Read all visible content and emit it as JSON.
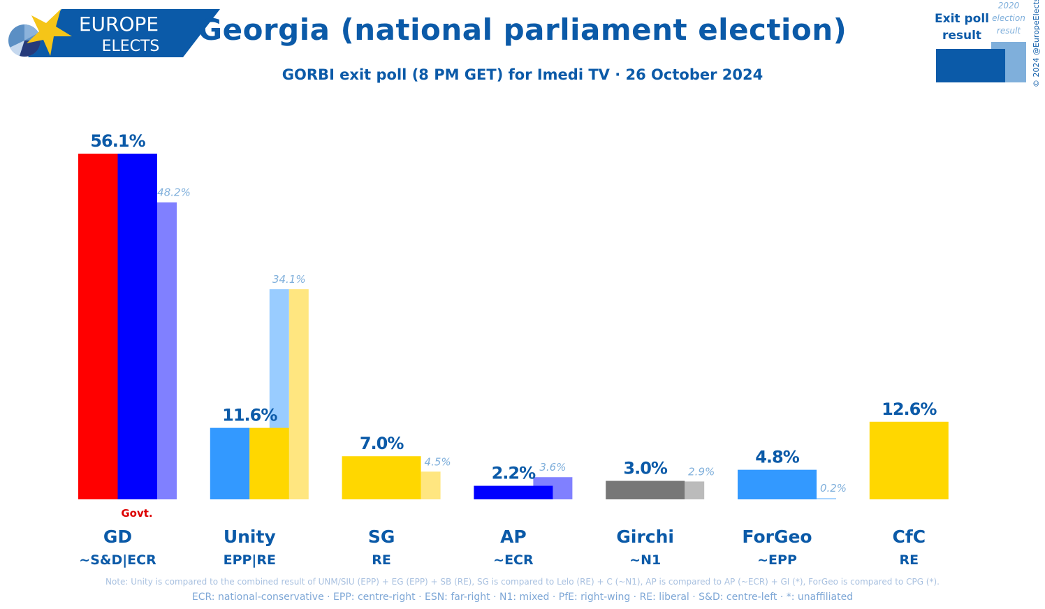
{
  "logo": {
    "line1": "EUROPE",
    "line2": "ELECTS"
  },
  "header": {
    "title": "Georgia (national parliament election)",
    "subtitle": "GORBI exit poll (8 PM GET) for Imedi TV · 26 October 2024"
  },
  "key": {
    "current": "Exit poll result",
    "previous": "2020 election result",
    "copyright": "© 2024 @EuropeElects"
  },
  "chart_data": {
    "type": "bar",
    "categories": [
      "GD",
      "Unity",
      "SG",
      "AP",
      "Girchi",
      "ForGeo",
      "CfC"
    ],
    "groups": [
      "~S&D|ECR",
      "EPP|RE",
      "RE",
      "~ECR",
      "~N1",
      "~EPP",
      "RE"
    ],
    "series": [
      {
        "name": "Exit poll result",
        "values": [
          56.1,
          11.6,
          7.0,
          2.2,
          3.0,
          4.8,
          12.6
        ],
        "labels": [
          "56.1%",
          "11.6%",
          "7.0%",
          "2.2%",
          "3.0%",
          "4.8%",
          "12.6%"
        ]
      },
      {
        "name": "2020 election result",
        "values": [
          48.2,
          34.1,
          4.5,
          3.6,
          2.9,
          0.2,
          null
        ],
        "labels": [
          "48.2%",
          "34.1%",
          "4.5%",
          "3.6%",
          "2.9%",
          "0.2%",
          ""
        ]
      }
    ],
    "colors": [
      [
        "#ff0000",
        "#0000ff"
      ],
      [
        "#3399ff",
        "#ffd700"
      ],
      [
        "#ffd700"
      ],
      [
        "#0000ff"
      ],
      [
        "#777777"
      ],
      [
        "#3399ff"
      ],
      [
        "#ffd700"
      ]
    ],
    "prev_colors": [
      [
        "#8080ff"
      ],
      [
        "#99ccff",
        "#ffe680"
      ],
      [
        "#ffe680"
      ],
      [
        "#8080ff"
      ],
      [
        "#bbbbbb"
      ],
      [
        "#99ccff"
      ],
      []
    ],
    "annotation": "Govt.",
    "ylim": [
      0,
      60
    ],
    "grid": false
  },
  "footer": {
    "note": "Note: Unity is compared to the combined result of UNM/SIU (EPP) + EG (EPP) + SB (RE), SG is compared to Lelo (RE) + C (~N1), AP is compared to AP (~ECR) + GI (*), ForGeo is compared to CPG (*).",
    "legend": "ECR: national-conservative · EPP: centre-right · ESN: far-right · N1: mixed · PfE: right-wing · RE: liberal · S&D: centre-left · *: unaffiliated"
  },
  "colors": {
    "brand": "#0b5aa8",
    "current_key": "#0b5aa8",
    "previous_key": "#7fafdb",
    "govt": "#dd0000"
  }
}
